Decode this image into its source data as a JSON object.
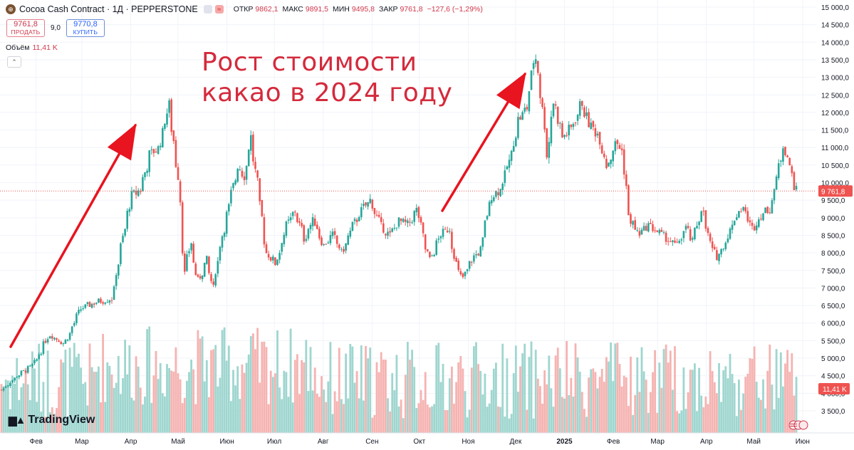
{
  "header": {
    "icon": "cocoa-coin-icon",
    "title": "Cocoa Cash Contract · 1Д · PEPPERSTONE",
    "ohlc": [
      {
        "label": "ОТКР",
        "value": "9862,1"
      },
      {
        "label": "МАКС",
        "value": "9891,5"
      },
      {
        "label": "МИН",
        "value": "9495,8"
      },
      {
        "label": "ЗАКР",
        "value": "9761,8"
      }
    ],
    "change": "−127,6 (−1,29%)"
  },
  "trade": {
    "sell_price": "9761,8",
    "sell_label": "ПРОДАТЬ",
    "spread": "9,0",
    "buy_price": "9770,8",
    "buy_label": "КУПИТЬ"
  },
  "volume": {
    "label": "Объём",
    "value": "11,41 K"
  },
  "annotation": {
    "line1": "Рост стоимости",
    "line2": "какао в 2024 году"
  },
  "logo": "TradingView",
  "colors": {
    "up": "#26a69a",
    "down": "#ef5350",
    "up_vol": "#9fd6cf",
    "down_vol": "#f5b3b1",
    "arrow": "#e8141f",
    "text": "#131722"
  },
  "chart_data": {
    "type": "candlestick",
    "symbol": "Cocoa Cash Contract",
    "timeframe": "1Д",
    "ylim": [
      3200,
      15050
    ],
    "y_ticks": [
      "3 500,0",
      "4 000,0",
      "4 500,0",
      "5 000,0",
      "5 500,0",
      "6 000,0",
      "6 500,0",
      "7 000,0",
      "7 500,0",
      "8 000,0",
      "8 500,0",
      "9 000,0",
      "9 500,0",
      "10 000,0",
      "10 500,0",
      "11 000,0",
      "11 500,0",
      "12 000,0",
      "12 500,0",
      "13 000,0",
      "13 500,0",
      "14 000,0",
      "14 500,0",
      "15 000,0"
    ],
    "y_tick_values": [
      3500,
      4000,
      4500,
      5000,
      5500,
      6000,
      6500,
      7000,
      7500,
      8000,
      8500,
      9000,
      9500,
      10000,
      10500,
      11000,
      11500,
      12000,
      12500,
      13000,
      13500,
      14000,
      14500,
      15000
    ],
    "x_ticks": [
      "Фев",
      "Мар",
      "Апр",
      "Май",
      "Июн",
      "Июл",
      "Авг",
      "Сен",
      "Окт",
      "Ноя",
      "Дек",
      "2025",
      "Фев",
      "Мар",
      "Апр",
      "Май",
      "Июн"
    ],
    "x_tick_day": [
      22,
      51,
      82,
      112,
      143,
      173,
      204,
      235,
      265,
      296,
      326,
      357,
      388,
      416,
      447,
      477,
      508
    ],
    "last_price_label": "9 761,8",
    "last_price": 9761.8,
    "volume_label": "11,41 K",
    "path_points": [
      [
        0,
        4100
      ],
      [
        10,
        4500
      ],
      [
        20,
        4800
      ],
      [
        25,
        5200
      ],
      [
        30,
        5700
      ],
      [
        40,
        5400
      ],
      [
        50,
        6400
      ],
      [
        60,
        6600
      ],
      [
        70,
        6700
      ],
      [
        76,
        8200
      ],
      [
        82,
        9600
      ],
      [
        88,
        9800
      ],
      [
        94,
        10800
      ],
      [
        100,
        11000
      ],
      [
        106,
        12200
      ],
      [
        112,
        10200
      ],
      [
        116,
        7400
      ],
      [
        120,
        8300
      ],
      [
        124,
        7100
      ],
      [
        130,
        7800
      ],
      [
        134,
        7000
      ],
      [
        140,
        8500
      ],
      [
        146,
        9700
      ],
      [
        150,
        10500
      ],
      [
        154,
        10200
      ],
      [
        158,
        11300
      ],
      [
        162,
        10000
      ],
      [
        168,
        8000
      ],
      [
        174,
        7700
      ],
      [
        180,
        8700
      ],
      [
        186,
        9200
      ],
      [
        192,
        8400
      ],
      [
        198,
        9000
      ],
      [
        204,
        8200
      ],
      [
        210,
        8500
      ],
      [
        216,
        8000
      ],
      [
        222,
        8700
      ],
      [
        228,
        9200
      ],
      [
        234,
        9500
      ],
      [
        240,
        8800
      ],
      [
        246,
        8500
      ],
      [
        252,
        8900
      ],
      [
        258,
        8800
      ],
      [
        264,
        9300
      ],
      [
        268,
        8200
      ],
      [
        272,
        7800
      ],
      [
        278,
        8500
      ],
      [
        284,
        8700
      ],
      [
        288,
        7700
      ],
      [
        292,
        7200
      ],
      [
        298,
        7800
      ],
      [
        304,
        8100
      ],
      [
        310,
        9600
      ],
      [
        316,
        9800
      ],
      [
        322,
        10600
      ],
      [
        328,
        11800
      ],
      [
        334,
        12200
      ],
      [
        338,
        13900
      ],
      [
        342,
        12500
      ],
      [
        346,
        10800
      ],
      [
        350,
        12300
      ],
      [
        356,
        11300
      ],
      [
        362,
        11600
      ],
      [
        368,
        12300
      ],
      [
        372,
        11700
      ],
      [
        378,
        11400
      ],
      [
        384,
        10500
      ],
      [
        390,
        11200
      ],
      [
        394,
        10800
      ],
      [
        398,
        9000
      ],
      [
        404,
        8500
      ],
      [
        410,
        8800
      ],
      [
        416,
        8600
      ],
      [
        422,
        8400
      ],
      [
        428,
        8200
      ],
      [
        434,
        8700
      ],
      [
        438,
        8300
      ],
      [
        444,
        9300
      ],
      [
        450,
        8100
      ],
      [
        454,
        7900
      ],
      [
        460,
        8400
      ],
      [
        466,
        9100
      ],
      [
        470,
        9300
      ],
      [
        476,
        8700
      ],
      [
        482,
        9100
      ],
      [
        488,
        9300
      ],
      [
        492,
        10300
      ],
      [
        496,
        11100
      ],
      [
        500,
        10400
      ],
      [
        504,
        9762
      ]
    ],
    "volume_ylim": [
      0,
      6300
    ]
  }
}
